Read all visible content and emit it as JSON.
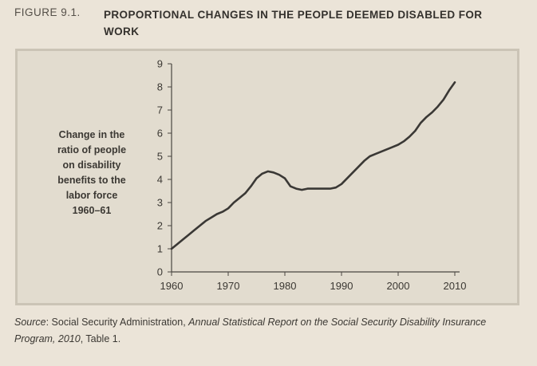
{
  "header": {
    "figure_number": "FIGURE 9.1.",
    "title": "PROPORTIONAL CHANGES IN THE PEOPLE DEEMED DISABLED FOR WORK"
  },
  "chart_data": {
    "type": "line",
    "title": "PROPORTIONAL CHANGES IN THE PEOPLE DEEMED DISABLED FOR WORK",
    "xlabel": "",
    "ylabel_lines": [
      "Change in the",
      "ratio of people",
      "on disability",
      "benefits to the",
      "labor force",
      "1960–61"
    ],
    "xlim": [
      1960,
      2010
    ],
    "ylim": [
      0,
      9
    ],
    "x_ticks": [
      "1960",
      "1970",
      "1980",
      "1990",
      "2000",
      "2010"
    ],
    "y_ticks": [
      "0",
      "1",
      "2",
      "3",
      "4",
      "5",
      "6",
      "7",
      "8",
      "9"
    ],
    "grid": false,
    "series": [
      {
        "name": "Change in ratio",
        "color": "#3a3835",
        "x": [
          1960,
          1961,
          1962,
          1963,
          1964,
          1965,
          1966,
          1967,
          1968,
          1969,
          1970,
          1971,
          1972,
          1973,
          1974,
          1975,
          1976,
          1977,
          1978,
          1979,
          1980,
          1981,
          1982,
          1983,
          1984,
          1985,
          1986,
          1987,
          1988,
          1989,
          1990,
          1991,
          1992,
          1993,
          1994,
          1995,
          1996,
          1997,
          1998,
          1999,
          2000,
          2001,
          2002,
          2003,
          2004,
          2005,
          2006,
          2007,
          2008,
          2009,
          2010
        ],
        "values": [
          1.0,
          1.2,
          1.4,
          1.6,
          1.8,
          2.0,
          2.2,
          2.35,
          2.5,
          2.6,
          2.75,
          3.0,
          3.2,
          3.4,
          3.7,
          4.05,
          4.25,
          4.35,
          4.3,
          4.2,
          4.05,
          3.7,
          3.6,
          3.55,
          3.6,
          3.6,
          3.6,
          3.6,
          3.6,
          3.65,
          3.8,
          4.05,
          4.3,
          4.55,
          4.8,
          5.0,
          5.1,
          5.2,
          5.3,
          5.4,
          5.5,
          5.65,
          5.85,
          6.1,
          6.45,
          6.7,
          6.9,
          7.15,
          7.45,
          7.85,
          8.2
        ]
      }
    ]
  },
  "source": {
    "label": "Source",
    "prefix": ": Social Security Administration, ",
    "publication": "Annual Statistical Report on the Social Security Disability Insurance Program, 2010",
    "suffix": ", Table 1."
  }
}
